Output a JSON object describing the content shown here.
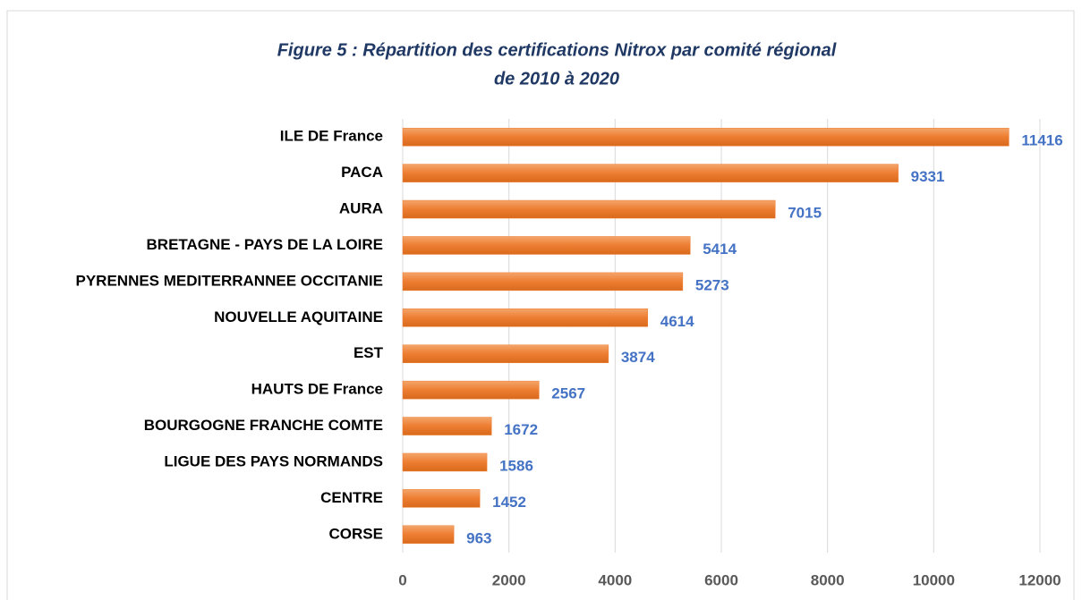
{
  "chart_data": {
    "type": "hbar",
    "title": [
      "Figure 5 : Répartition des certifications Nitrox par comité régional",
      "de 2010 à 2020"
    ],
    "categories": [
      "ILE DE France",
      "PACA",
      "AURA",
      "BRETAGNE - PAYS DE LA LOIRE",
      "PYRENNES MEDITERRANNEE OCCITANIE",
      "NOUVELLE AQUITAINE",
      "EST",
      "HAUTS DE France",
      "BOURGOGNE FRANCHE COMTE",
      "LIGUE DES PAYS NORMANDS",
      "CENTRE",
      "CORSE"
    ],
    "values": [
      11416,
      9331,
      7015,
      5414,
      5273,
      4614,
      3874,
      2567,
      1672,
      1586,
      1452,
      963
    ],
    "color": "#ed7d31",
    "label_color": "#4472c4",
    "xlim": [
      0,
      12000
    ],
    "xticks": [
      0,
      2000,
      4000,
      6000,
      8000,
      10000,
      12000
    ],
    "grid": true
  }
}
